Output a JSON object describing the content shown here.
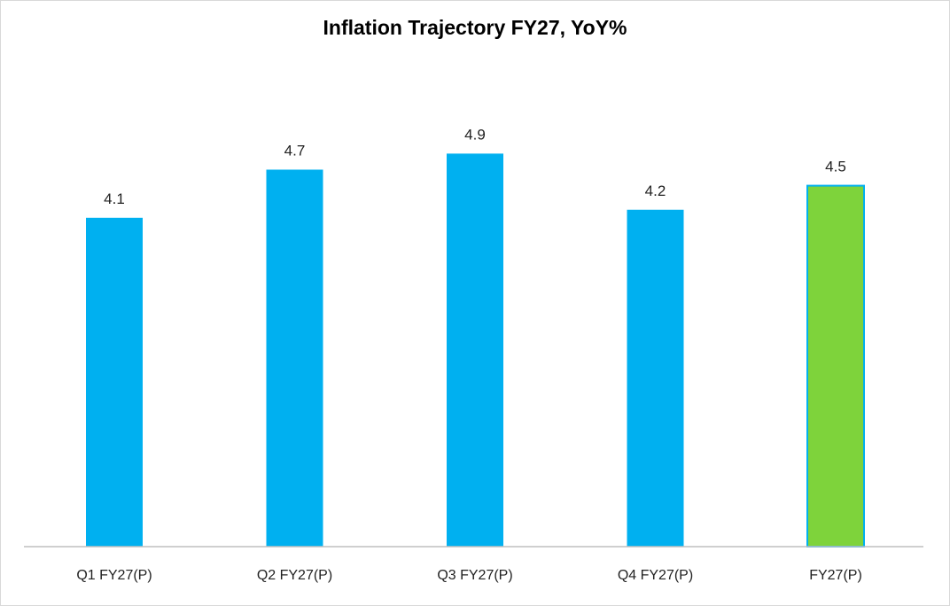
{
  "chart_data": {
    "type": "bar",
    "title": "Inflation Trajectory FY27, YoY%",
    "xlabel": "",
    "ylabel": "",
    "categories": [
      "Q1 FY27(P)",
      "Q2 FY27(P)",
      "Q3 FY27(P)",
      "Q4 FY27(P)",
      "FY27(P)"
    ],
    "values": [
      4.1,
      4.7,
      4.9,
      4.2,
      4.5
    ],
    "data_labels": [
      "4.1",
      "4.7",
      "4.9",
      "4.2",
      "4.5"
    ],
    "bar_colors": [
      "#00b0f0",
      "#00b0f0",
      "#00b0f0",
      "#00b0f0",
      "#7ed33b"
    ],
    "highlight_border_color": "#00b0f0",
    "ylim": [
      0,
      5.5
    ],
    "grid": false,
    "legend": "none",
    "axis_color": "#bfbfbf"
  }
}
